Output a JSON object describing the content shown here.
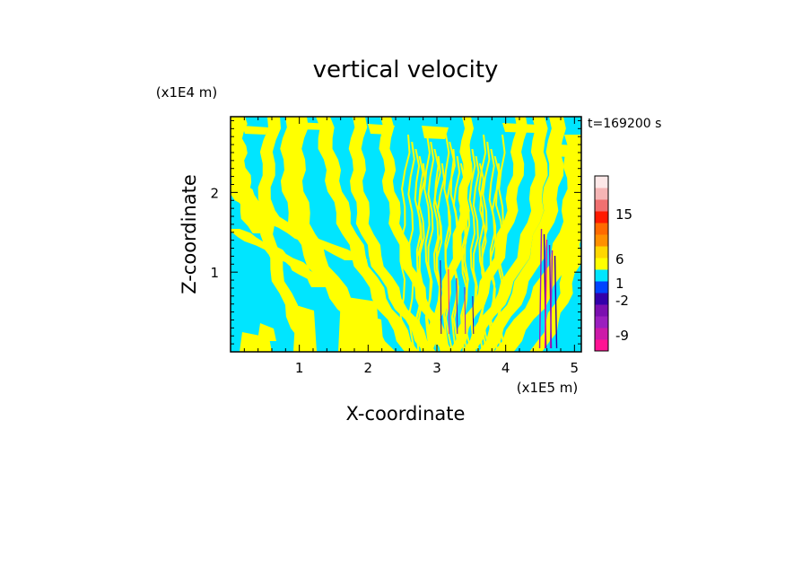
{
  "chart_data": {
    "type": "heatmap",
    "title": "vertical velocity",
    "xlabel": "X-coordinate",
    "ylabel": "Z-coordinate",
    "x_unit_label": "(x1E5 m)",
    "y_unit_label": "(x1E4 m)",
    "time_label": "t=169200 s",
    "xlim": [
      0,
      5.1
    ],
    "ylim": [
      0,
      2.95
    ],
    "x_ticks": [
      "1",
      "2",
      "3",
      "4",
      "5"
    ],
    "y_ticks": [
      "1",
      "2"
    ],
    "x_tick_values": [
      1,
      2,
      3,
      4,
      5
    ],
    "y_tick_values": [
      1,
      2
    ],
    "colorbar": {
      "tick_labels": [
        "15",
        "6",
        "1",
        "-2",
        "-9"
      ],
      "levels": [
        {
          "color": "#ff1493"
        },
        {
          "color": "#cc1aa8"
        },
        {
          "color": "#9b1fbf"
        },
        {
          "color": "#7b0fb0"
        },
        {
          "color": "#3300aa"
        },
        {
          "color": "#0044ff"
        },
        {
          "color": "#00e5ff"
        },
        {
          "color": "#ffff00"
        },
        {
          "color": "#ffd700"
        },
        {
          "color": "#ff9000"
        },
        {
          "color": "#ff6a00"
        },
        {
          "color": "#ff1a00"
        },
        {
          "color": "#f07070"
        },
        {
          "color": "#f5b5b5"
        },
        {
          "color": "#fde8e8"
        }
      ]
    },
    "field_colors": {
      "positive": "#ffff00",
      "negative": "#00e5ff"
    }
  }
}
